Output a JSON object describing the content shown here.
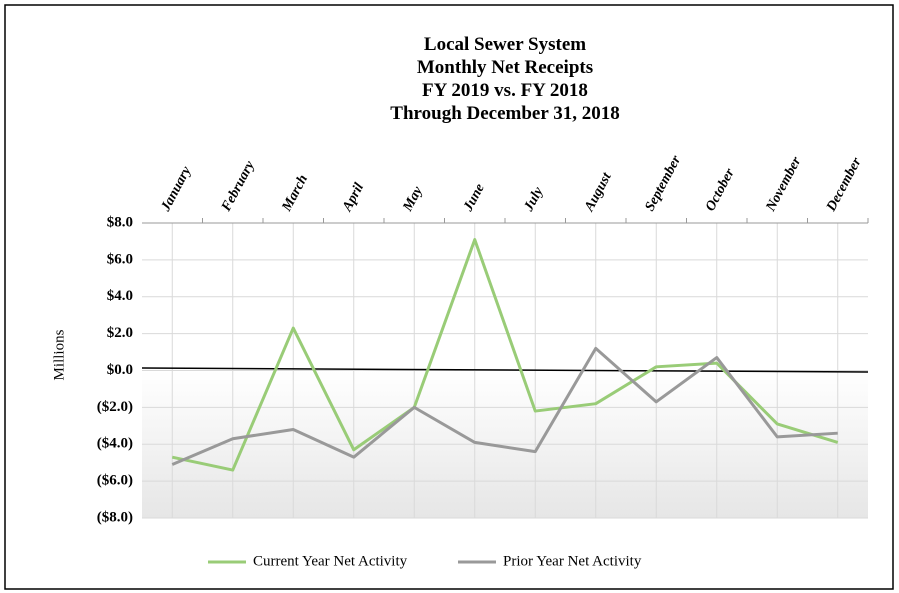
{
  "chart_data": {
    "type": "line",
    "title": [
      "Local Sewer System",
      "Monthly Net Receipts",
      "FY 2019 vs. FY 2018",
      "Through December 31, 2018"
    ],
    "y_label": "Millions",
    "categories": [
      "January",
      "February",
      "March",
      "April",
      "May",
      "June",
      "July",
      "August",
      "September",
      "October",
      "November",
      "December"
    ],
    "series": [
      {
        "name": "Current Year Net Activity",
        "color": "#99cc77",
        "values": [
          -4.7,
          -5.4,
          2.3,
          -4.3,
          -2.0,
          7.1,
          -2.2,
          -1.8,
          0.2,
          0.4,
          -2.9,
          -3.9
        ]
      },
      {
        "name": "Prior Year Net Activity",
        "color": "#999999",
        "values": [
          -5.1,
          -3.7,
          -3.2,
          -4.7,
          -2.0,
          -3.9,
          -4.4,
          1.2,
          -1.7,
          0.7,
          -3.6,
          -3.4
        ]
      }
    ],
    "ylim": [
      -8,
      8
    ],
    "yticks": [
      {
        "value": 8,
        "label": "$8.0"
      },
      {
        "value": 6,
        "label": "$6.0"
      },
      {
        "value": 4,
        "label": "$4.0"
      },
      {
        "value": 2,
        "label": "$2.0"
      },
      {
        "value": 0,
        "label": "$0.0"
      },
      {
        "value": -2,
        "label": "($2.0)"
      },
      {
        "value": -4,
        "label": "($4.0)"
      },
      {
        "value": -6,
        "label": "($6.0)"
      },
      {
        "value": -8,
        "label": "($8.0)"
      }
    ],
    "grid": true
  }
}
